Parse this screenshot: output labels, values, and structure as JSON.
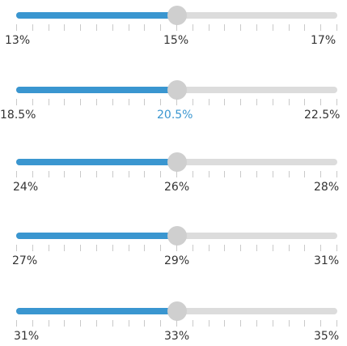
{
  "accent_color": "#3a96d0",
  "sliders": [
    {
      "labels": [
        "13%",
        "15%",
        "17%"
      ],
      "active_label_index": null,
      "value_fraction": 0.5
    },
    {
      "labels": [
        "18.5%",
        "20.5%",
        "22.5%"
      ],
      "active_label_index": 1,
      "value_fraction": 0.5
    },
    {
      "labels": [
        "24%",
        "26%",
        "28%"
      ],
      "active_label_index": null,
      "value_fraction": 0.5
    },
    {
      "labels": [
        "27%",
        "29%",
        "31%"
      ],
      "active_label_index": null,
      "value_fraction": 0.5
    },
    {
      "labels": [
        "31%",
        "33%",
        "35%"
      ],
      "active_label_index": null,
      "value_fraction": 0.5
    }
  ]
}
